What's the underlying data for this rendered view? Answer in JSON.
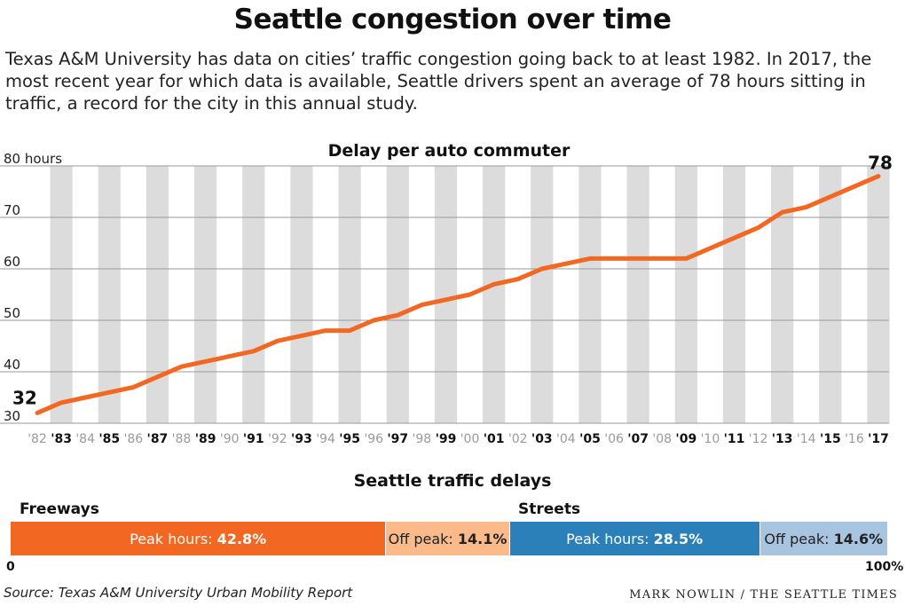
{
  "header": {
    "title": "Seattle congestion over time",
    "intro": "Texas A&M University has data on cities’ traffic congestion going back to at least 1982. In 2017, the most recent year for which data is available, Seattle drivers spent an average of 78 hours sitting in traffic, a record for the city in this annual study."
  },
  "chart_data": [
    {
      "type": "line",
      "title": "Delay per auto commuter",
      "ylabel": "hours",
      "ylim": [
        30,
        80
      ],
      "yticks": [
        "30",
        "40",
        "50",
        "60",
        "70",
        "80 hours"
      ],
      "grid": true,
      "x": [
        "'82",
        "'83",
        "'84",
        "'85",
        "'86",
        "'87",
        "'88",
        "'89",
        "'90",
        "'91",
        "'92",
        "'93",
        "'94",
        "'95",
        "'96",
        "'97",
        "'98",
        "'99",
        "'00",
        "'01",
        "'02",
        "'03",
        "'04",
        "'05",
        "'06",
        "'07",
        "'08",
        "'09",
        "'10",
        "'11",
        "'12",
        "'13",
        "'14",
        "'15",
        "'16",
        "'17"
      ],
      "bold_x": [
        "'83",
        "'85",
        "'87",
        "'89",
        "'91",
        "'93",
        "'95",
        "'97",
        "'99",
        "'01",
        "'03",
        "'05",
        "'07",
        "'09",
        "'11",
        "'13",
        "'15",
        "'17"
      ],
      "series": [
        {
          "values": [
            32,
            34,
            35,
            36,
            37,
            39,
            41,
            42,
            43,
            44,
            46,
            47,
            48,
            48,
            50,
            51,
            53,
            54,
            55,
            57,
            58,
            60,
            61,
            62,
            62,
            62,
            62,
            62,
            64,
            66,
            68,
            71,
            72,
            74,
            76,
            78
          ],
          "color": "#f26722"
        }
      ],
      "annotations": [
        {
          "x": "'82",
          "text": "32"
        },
        {
          "x": "'17",
          "text": "78"
        }
      ]
    },
    {
      "type": "bar",
      "title": "Seattle traffic delays",
      "stacked": true,
      "orientation": "horizontal",
      "groups": [
        "Freeways",
        "Streets"
      ],
      "series": [
        {
          "group": "Freeways",
          "label": "Peak hours:",
          "value": 42.8,
          "value_text": "42.8%",
          "color": "#f26722",
          "text_color": "#ffffff"
        },
        {
          "group": "Freeways",
          "label": "Off peak:",
          "value": 14.1,
          "value_text": "14.1%",
          "color": "#fcba8a",
          "text_color": "#222222"
        },
        {
          "group": "Streets",
          "label": "Peak hours:",
          "value": 28.5,
          "value_text": "28.5%",
          "color": "#2b80b9",
          "text_color": "#ffffff"
        },
        {
          "group": "Streets",
          "label": "Off peak:",
          "value": 14.6,
          "value_text": "14.6%",
          "color": "#a7c4e0",
          "text_color": "#222222"
        }
      ],
      "xlim": [
        0,
        100
      ],
      "axis_labels": {
        "start": "0",
        "end": "100%"
      }
    }
  ],
  "footer": {
    "source": "Source: Texas A&M University Urban Mobility Report",
    "credit": "MARK NOWLIN / THE SEATTLE TIMES"
  }
}
